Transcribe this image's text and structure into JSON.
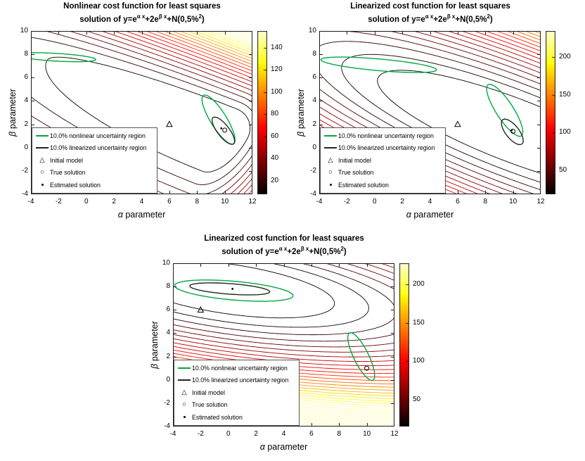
{
  "figure": {
    "background": "#ffffff"
  },
  "chart_data": [
    {
      "type": "contour",
      "title_line1": "Nonlinear cost function for least squares",
      "title_line2": "solution of y=e^{α x}+2e^{β x}+N(0,5%^{2})",
      "xlabel": "α parameter",
      "ylabel": "β parameter",
      "xlim": [
        -4,
        12
      ],
      "ylim": [
        -4,
        10
      ],
      "xticks": [
        -4,
        -2,
        0,
        2,
        4,
        6,
        8,
        10,
        12
      ],
      "yticks": [
        -4,
        -2,
        0,
        2,
        4,
        6,
        8,
        10
      ],
      "grid": false,
      "colormap": "hot",
      "colorbar": {
        "clim": [
          8,
          155
        ],
        "ticks": [
          20,
          40,
          60,
          80,
          100,
          120,
          140
        ]
      },
      "cost_model": {
        "center": [
          10,
          1.5
        ],
        "angle_deg": -25,
        "a_neg": 9.5,
        "a_pos": 1.2,
        "b_up": 1.35,
        "b_down": 2.6,
        "scale": 4.5,
        "level_min": 10,
        "level_max": 260,
        "level_step": 7
      },
      "uncertainty_regions": [
        {
          "name": "nonlinear",
          "color": "#00a83c",
          "line_width": 1.4,
          "ellipses": [
            {
              "cx": -2.2,
              "cy": 7.75,
              "rx": 2.9,
              "ry": 0.33,
              "angle": -4
            },
            {
              "cx": 9.55,
              "cy": 2.4,
              "rx": 2.35,
              "ry": 0.6,
              "angle": -63
            }
          ]
        },
        {
          "name": "linearized",
          "color": "#1c2a1c",
          "line_width": 1.4,
          "ellipses": [
            {
              "cx": 9.9,
              "cy": 1.45,
              "rx": 1.35,
              "ry": 0.45,
              "angle": -58
            }
          ]
        }
      ],
      "markers": {
        "initial_model": [
          6,
          2
        ],
        "true_solution": [
          10,
          1.5
        ],
        "estimated_solution": [
          9.75,
          1.65
        ]
      },
      "legend": [
        {
          "symbol": "line-green",
          "label": "10.0% nonlinear uncertainty region"
        },
        {
          "symbol": "line-dark",
          "label": "10.0% linearized uncertainty region"
        },
        {
          "symbol": "triangle",
          "label": "Initial model"
        },
        {
          "symbol": "circle",
          "label": "True solution"
        },
        {
          "symbol": "dot",
          "label": "Estimated solution"
        }
      ],
      "legend_position": "lower-left"
    },
    {
      "type": "contour",
      "title_line1": "Linearized cost function for least squares",
      "title_line2": "solution of y=e^{α x}+2e^{β x}+N(0,5%^{2})",
      "xlabel": "α parameter",
      "ylabel": "β parameter",
      "xlim": [
        -4,
        12
      ],
      "ylim": [
        -4,
        10
      ],
      "xticks": [
        -4,
        -2,
        0,
        2,
        4,
        6,
        8,
        10,
        12
      ],
      "yticks": [
        -4,
        -2,
        0,
        2,
        4,
        6,
        8,
        10
      ],
      "grid": false,
      "colormap": "hot",
      "colorbar": {
        "clim": [
          18,
          235
        ],
        "ticks": [
          50,
          100,
          150,
          200
        ]
      },
      "cost_model": {
        "center": [
          10,
          1.5
        ],
        "angle_deg": -25,
        "a_neg": 6.5,
        "a_pos": 6.5,
        "b_up": 1.6,
        "b_down": 1.6,
        "scale": 5.5,
        "level_min": 15,
        "level_max": 300,
        "level_step": 9
      },
      "uncertainty_regions": [
        {
          "name": "nonlinear",
          "color": "#00a83c",
          "line_width": 1.4,
          "ellipses": [
            {
              "cx": 0.3,
              "cy": 7.1,
              "rx": 4.2,
              "ry": 0.5,
              "angle": -6
            },
            {
              "cx": 9.4,
              "cy": 3.2,
              "rx": 2.5,
              "ry": 0.65,
              "angle": -62
            }
          ]
        },
        {
          "name": "linearized",
          "color": "#1c2a1c",
          "line_width": 1.4,
          "ellipses": [
            {
              "cx": 9.95,
              "cy": 1.35,
              "rx": 1.25,
              "ry": 0.5,
              "angle": -58
            }
          ]
        }
      ],
      "markers": {
        "initial_model": [
          6,
          2
        ],
        "true_solution": [
          10,
          1.4
        ],
        "estimated_solution": [
          9.9,
          1.5
        ]
      },
      "legend": [
        {
          "symbol": "line-green",
          "label": "10.0% nonlinear uncertainty region"
        },
        {
          "symbol": "line-dark",
          "label": "10.0% linearized uncertainty region"
        },
        {
          "symbol": "triangle",
          "label": "Initial model"
        },
        {
          "symbol": "circle",
          "label": "True solution"
        },
        {
          "symbol": "dot",
          "label": "Estimated solution"
        }
      ],
      "legend_position": "lower-left"
    },
    {
      "type": "contour",
      "title_line1": "Linearized cost function for least squares",
      "title_line2": "solution of y=e^{α x}+2e^{β x}+N(0,5%^{2})",
      "xlabel": "α parameter",
      "ylabel": "β parameter",
      "xlim": [
        -4,
        12
      ],
      "ylim": [
        -4,
        10
      ],
      "xticks": [
        -4,
        -2,
        0,
        2,
        4,
        6,
        8,
        10,
        12
      ],
      "yticks": [
        -4,
        -2,
        0,
        2,
        4,
        6,
        8,
        10
      ],
      "grid": false,
      "colormap": "hot",
      "colorbar": {
        "clim": [
          15,
          228
        ],
        "ticks": [
          50,
          100,
          150,
          200
        ]
      },
      "cost_model": {
        "center": [
          0,
          7.8
        ],
        "angle_deg": -10,
        "a_neg": 5.5,
        "a_pos": 5.5,
        "b_up": 1.5,
        "b_down": 1.5,
        "scale": 6,
        "level_min": 12,
        "level_max": 300,
        "level_step": 9
      },
      "uncertainty_regions": [
        {
          "name": "nonlinear",
          "color": "#00a83c",
          "line_width": 1.4,
          "ellipses": [
            {
              "cx": 0.4,
              "cy": 7.65,
              "rx": 4.3,
              "ry": 0.8,
              "angle": -6
            },
            {
              "cx": 9.6,
              "cy": 2.0,
              "rx": 2.2,
              "ry": 0.55,
              "angle": -68
            }
          ]
        },
        {
          "name": "linearized",
          "color": "#1c2a1c",
          "line_width": 1.4,
          "ellipses": [
            {
              "cx": 0.1,
              "cy": 7.8,
              "rx": 2.9,
              "ry": 0.45,
              "angle": -5
            }
          ]
        }
      ],
      "markers": {
        "initial_model": [
          -2,
          6
        ],
        "true_solution": [
          10,
          1
        ],
        "estimated_solution": [
          0.3,
          7.8
        ]
      },
      "legend": [
        {
          "symbol": "line-green",
          "label": "10.0% nonlinear uncertainty region"
        },
        {
          "symbol": "line-dark",
          "label": "10.0% linearized uncertainty region"
        },
        {
          "symbol": "triangle",
          "label": "Initial model"
        },
        {
          "symbol": "circle",
          "label": "True solution"
        },
        {
          "symbol": "dot",
          "label": "Estimated solution"
        }
      ],
      "legend_position": "lower-left"
    }
  ]
}
